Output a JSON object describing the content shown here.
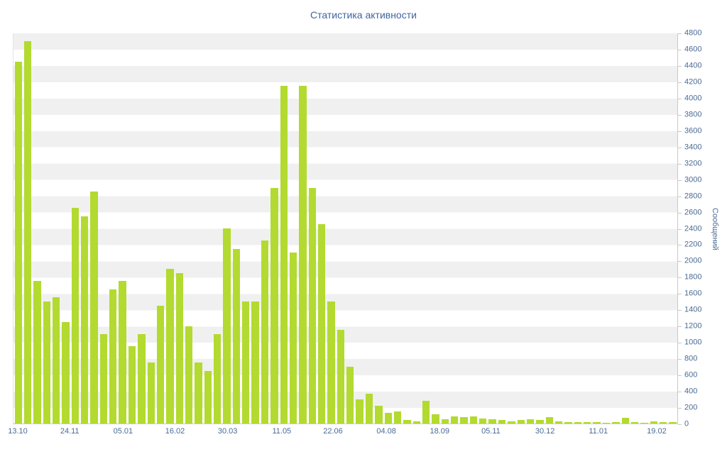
{
  "colors": {
    "title-color": "#3f64a3",
    "label-color": "#4a6b94",
    "bar-color": "#b3da30",
    "band-color": "#f0f0f0",
    "axis-color": "#c9c9c9"
  },
  "chart_data": {
    "type": "bar",
    "title": "Статистика активности",
    "xlabel": "",
    "ylabel": "Сообщений",
    "ylim": [
      0,
      4800
    ],
    "y_step": 200,
    "grid": "alternating-horizontal-bands",
    "legend": "none",
    "y_axis_position": "right",
    "y_ticks": [
      0,
      200,
      400,
      600,
      800,
      1000,
      1200,
      1400,
      1600,
      1800,
      2000,
      2200,
      2400,
      2600,
      2800,
      3000,
      3200,
      3400,
      3600,
      3800,
      4000,
      4200,
      4400,
      4600,
      4800
    ],
    "x_tick_labels": [
      "13.10",
      "24.11",
      "05.01",
      "16.02",
      "30.03",
      "11.05",
      "22.06",
      "04.08",
      "18.09",
      "05.11",
      "30.12",
      "11.01",
      "19.02"
    ],
    "x_tick_positions": [
      0.0075,
      0.0856,
      0.1658,
      0.2439,
      0.323,
      0.4043,
      0.4813,
      0.5615,
      0.6417,
      0.7187,
      0.8,
      0.8802,
      0.9679
    ],
    "values": [
      4450,
      4700,
      1750,
      1500,
      1550,
      1250,
      2650,
      2550,
      2850,
      1100,
      1650,
      1750,
      950,
      1100,
      750,
      1450,
      1900,
      1850,
      1200,
      750,
      650,
      1100,
      2400,
      2150,
      1500,
      1500,
      2250,
      2900,
      4150,
      2100,
      4150,
      2900,
      2450,
      1500,
      1150,
      700,
      300,
      370,
      215,
      130,
      150,
      40,
      30,
      280,
      115,
      55,
      90,
      80,
      90,
      60,
      50,
      40,
      30,
      40,
      50,
      40,
      80,
      30,
      20,
      20,
      20,
      20,
      10,
      20,
      70,
      15,
      10,
      25,
      20,
      15
    ]
  }
}
